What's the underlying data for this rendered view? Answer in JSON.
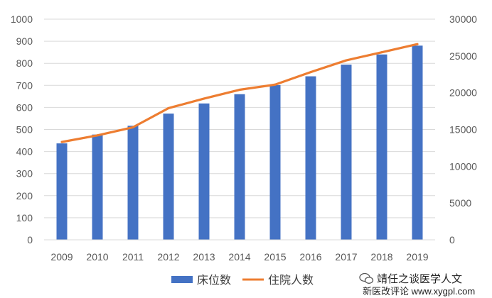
{
  "chart_data": {
    "type": "bar",
    "categories": [
      "2009",
      "2010",
      "2011",
      "2012",
      "2013",
      "2014",
      "2015",
      "2016",
      "2017",
      "2018",
      "2019"
    ],
    "series": [
      {
        "name": "床位数",
        "type": "bar",
        "axis": "left",
        "values": [
          437,
          477,
          517,
          572,
          618,
          660,
          701,
          741,
          794,
          840,
          880
        ]
      },
      {
        "name": "住院人数",
        "type": "line",
        "axis": "right",
        "values": [
          13300,
          14200,
          15300,
          17900,
          19200,
          20400,
          21100,
          22800,
          24400,
          25500,
          26600
        ]
      }
    ],
    "ylim_left": [
      0,
      1000
    ],
    "yticks_left": [
      "0",
      "100",
      "200",
      "300",
      "400",
      "500",
      "600",
      "700",
      "800",
      "900",
      "1000"
    ],
    "ylim_right": [
      0,
      30000
    ],
    "yticks_right": [
      "0",
      "5000",
      "10000",
      "15000",
      "20000",
      "25000",
      "30000"
    ],
    "grid": true,
    "legend_position": "bottom",
    "colors": {
      "bar": "#4472C4",
      "line": "#ED7D31",
      "grid": "#D9D9D9"
    }
  },
  "watermark": {
    "line1": "靖任之谈医学人文",
    "line2": "新医改评论 www.xygpl.com",
    "icon": "wechat-icon"
  }
}
